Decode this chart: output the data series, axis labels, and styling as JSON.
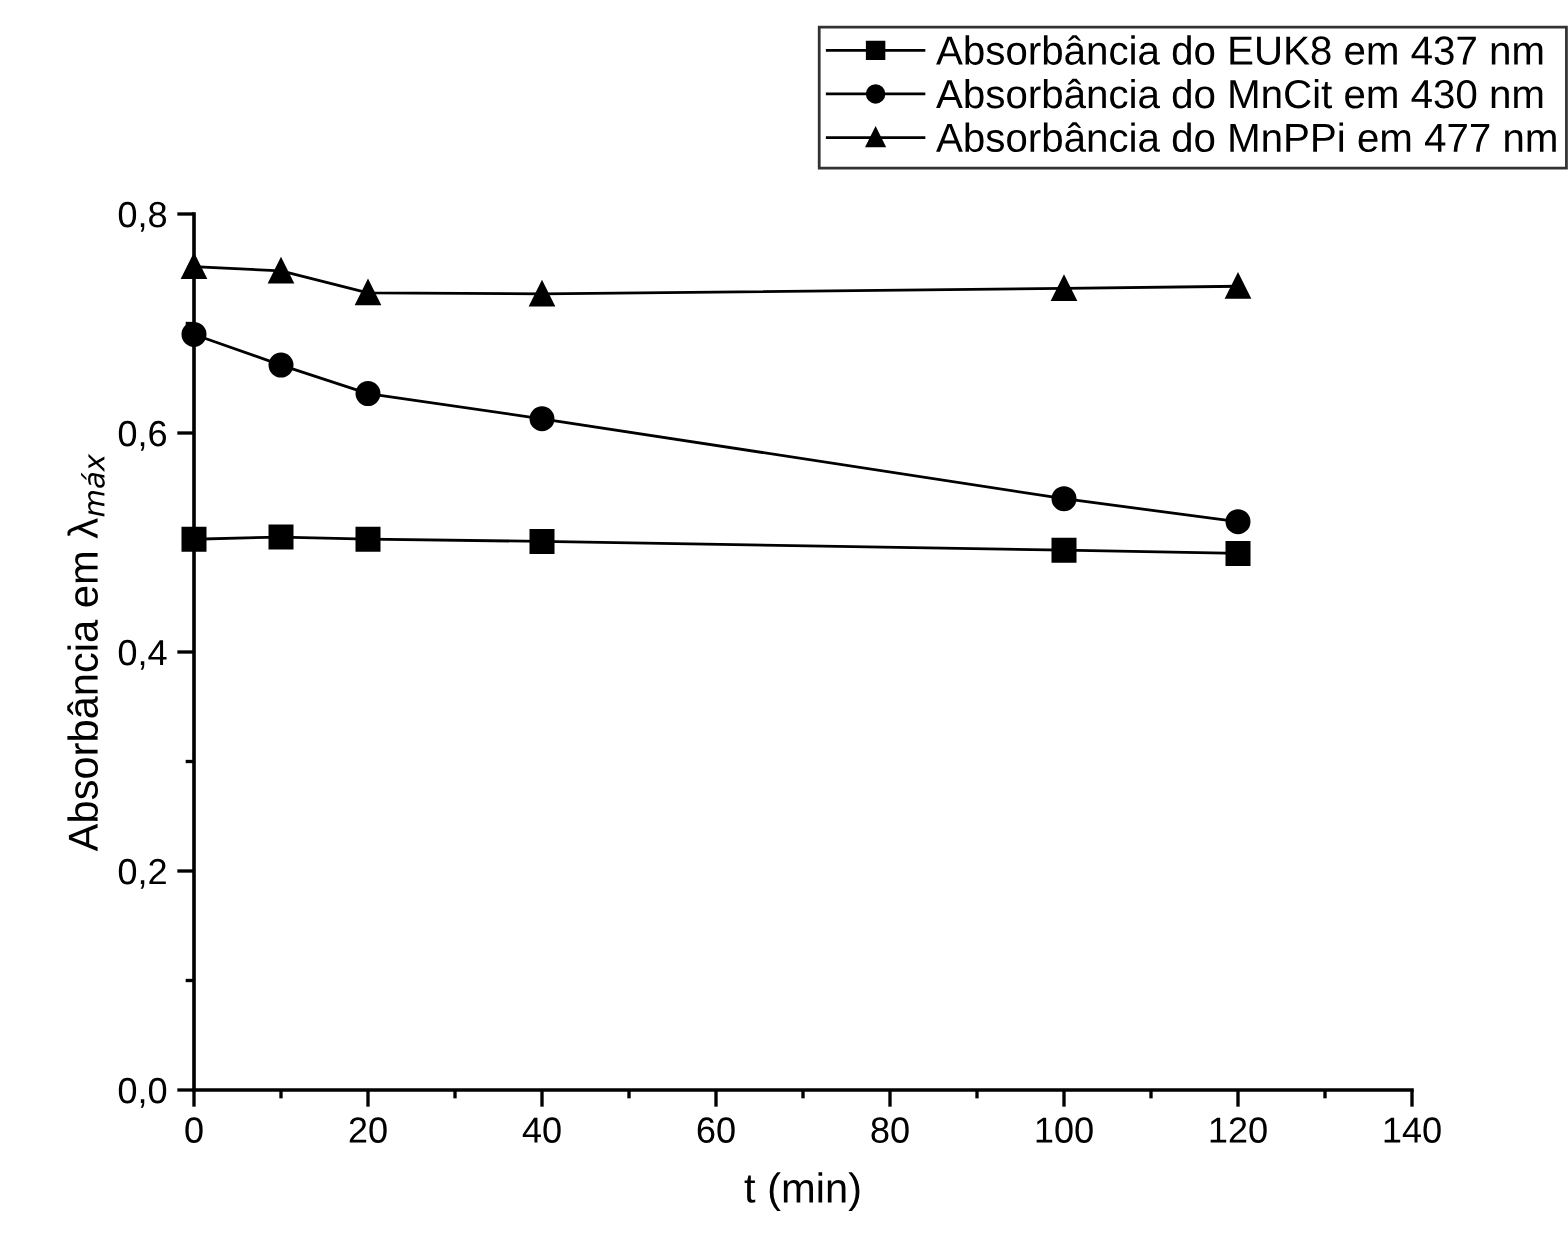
{
  "chart_data": {
    "type": "line",
    "xlabel": "t (min)",
    "ylabel": "Absorbância em λ$_{máx}$",
    "x": [
      0,
      10,
      20,
      40,
      100,
      120
    ],
    "series": [
      {
        "name": "Absorbância do EUK8 em 437 nm",
        "color": "#000000",
        "marker": "square",
        "values": [
          0.503,
          0.505,
          0.503,
          0.501,
          0.493,
          0.49
        ]
      },
      {
        "name": "Absorbância do MnCit em 430 nm",
        "color": "#000000",
        "marker": "circle",
        "values": [
          0.69,
          0.662,
          0.636,
          0.613,
          0.54,
          0.519
        ]
      },
      {
        "name": "Absorbância do MnPPi em 477 nm",
        "color": "#000000",
        "marker": "triangle",
        "values": [
          0.752,
          0.748,
          0.728,
          0.727,
          0.732,
          0.734
        ]
      }
    ],
    "xlim": [
      0,
      140
    ],
    "xticks": [
      0,
      {
        "value": 10,
        "label": null
      },
      20,
      {
        "value": 30,
        "label": null
      },
      40,
      {
        "value": 50,
        "label": null
      },
      60,
      {
        "value": 70,
        "label": null
      },
      80,
      {
        "value": 90,
        "label": null
      },
      100,
      {
        "value": 110,
        "label": null
      },
      120,
      {
        "value": 130,
        "label": null
      },
      140
    ],
    "ylim": [
      0,
      0.8
    ],
    "yticks": [
      {
        "value": 0,
        "label": "0,0"
      },
      {
        "value": 0.1,
        "label": null
      },
      {
        "value": 0.2,
        "label": "0,2"
      },
      {
        "value": 0.3,
        "label": null
      },
      {
        "value": 0.4,
        "label": "0,4"
      },
      {
        "value": 0.5,
        "label": null
      },
      {
        "value": 0.6,
        "label": "0,6"
      },
      {
        "value": 0.7,
        "label": null
      },
      {
        "value": 0.8,
        "label": "0,8"
      }
    ],
    "grid": false,
    "legend": "top right",
    "line_style": "solid"
  }
}
